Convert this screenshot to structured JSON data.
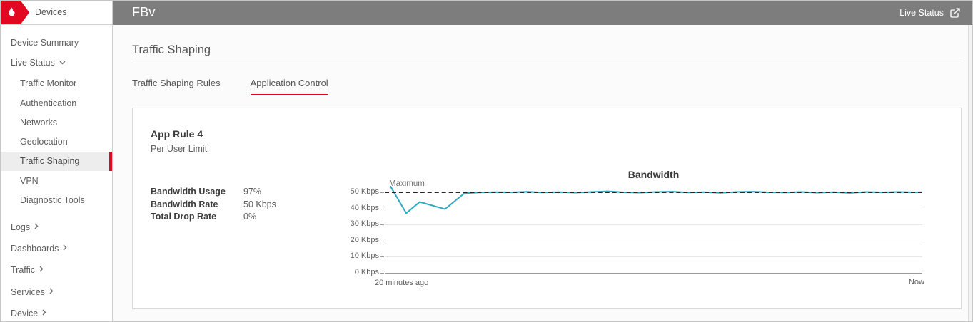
{
  "sidebar": {
    "brand": {
      "label": "Devices"
    },
    "items": [
      {
        "label": "Device Summary",
        "level": 0
      },
      {
        "label": "Live Status",
        "level": 0,
        "expanded": true
      },
      {
        "label": "Traffic Monitor",
        "level": 1
      },
      {
        "label": "Authentication",
        "level": 1
      },
      {
        "label": "Networks",
        "level": 1
      },
      {
        "label": "Geolocation",
        "level": 1
      },
      {
        "label": "Traffic Shaping",
        "level": 1,
        "selected": true
      },
      {
        "label": "VPN",
        "level": 1
      },
      {
        "label": "Diagnostic Tools",
        "level": 1
      },
      {
        "label": "Logs",
        "level": 0,
        "collapsed": true
      },
      {
        "label": "Dashboards",
        "level": 0,
        "collapsed": true
      },
      {
        "label": "Traffic",
        "level": 0,
        "collapsed": true
      },
      {
        "label": "Services",
        "level": 0,
        "collapsed": true
      },
      {
        "label": "Device",
        "level": 0,
        "collapsed": true
      }
    ]
  },
  "header": {
    "title": "FBv",
    "live_status_label": "Live Status"
  },
  "main": {
    "page_title": "Traffic Shaping",
    "tabs": [
      {
        "label": "Traffic Shaping Rules",
        "active": false
      },
      {
        "label": "Application Control",
        "active": true
      }
    ]
  },
  "card": {
    "title": "App Rule 4",
    "subtitle": "Per User Limit",
    "stats": [
      {
        "label": "Bandwidth Usage",
        "value": "97%"
      },
      {
        "label": "Bandwidth Rate",
        "value": "50 Kbps"
      },
      {
        "label": "Total Drop Rate",
        "value": "0%"
      }
    ]
  },
  "chart_data": {
    "type": "line",
    "title": "Bandwidth",
    "xlabel": "",
    "ylabel": "Kbps",
    "ylim": [
      0,
      56
    ],
    "x_range_minutes": [
      -20,
      0
    ],
    "grid": true,
    "x_labels": {
      "start": "20 minutes ago",
      "end": "Now"
    },
    "y_ticks": [
      {
        "label": "50 Kbps",
        "value": 50
      },
      {
        "label": "40 Kbps",
        "value": 40
      },
      {
        "label": "30 Kbps",
        "value": 30
      },
      {
        "label": "20 Kbps",
        "value": 20
      },
      {
        "label": "10 Kbps",
        "value": 10
      },
      {
        "label": "0 Kbps",
        "value": 0
      }
    ],
    "max_line": {
      "label": "Maximum",
      "value": 50,
      "style": "dashed"
    },
    "series": [
      {
        "name": "Bandwidth",
        "color": "#2fa9c4",
        "points": [
          [
            0.011,
            53.5
          ],
          [
            0.04,
            37.0
          ],
          [
            0.065,
            44.0
          ],
          [
            0.112,
            39.5
          ],
          [
            0.148,
            49.4
          ],
          [
            0.175,
            49.9
          ],
          [
            0.205,
            50.1
          ],
          [
            0.235,
            50.0
          ],
          [
            0.265,
            50.3
          ],
          [
            0.295,
            49.9
          ],
          [
            0.325,
            50.1
          ],
          [
            0.355,
            49.8
          ],
          [
            0.385,
            50.2
          ],
          [
            0.415,
            50.6
          ],
          [
            0.445,
            50.0
          ],
          [
            0.475,
            49.8
          ],
          [
            0.505,
            50.2
          ],
          [
            0.535,
            50.4
          ],
          [
            0.565,
            49.9
          ],
          [
            0.595,
            50.1
          ],
          [
            0.625,
            49.7
          ],
          [
            0.655,
            50.2
          ],
          [
            0.685,
            50.4
          ],
          [
            0.715,
            50.0
          ],
          [
            0.745,
            49.9
          ],
          [
            0.775,
            50.2
          ],
          [
            0.805,
            49.8
          ],
          [
            0.835,
            50.1
          ],
          [
            0.865,
            49.6
          ],
          [
            0.895,
            50.2
          ],
          [
            0.925,
            50.0
          ],
          [
            0.955,
            50.2
          ],
          [
            0.985,
            50.0
          ],
          [
            1.0,
            50.1
          ]
        ]
      }
    ]
  },
  "colors": {
    "accent_red": "#e2081f",
    "header_gray": "#7d7d7d",
    "line_teal": "#2fa9c4",
    "grid_gray": "#e8e8e8"
  }
}
